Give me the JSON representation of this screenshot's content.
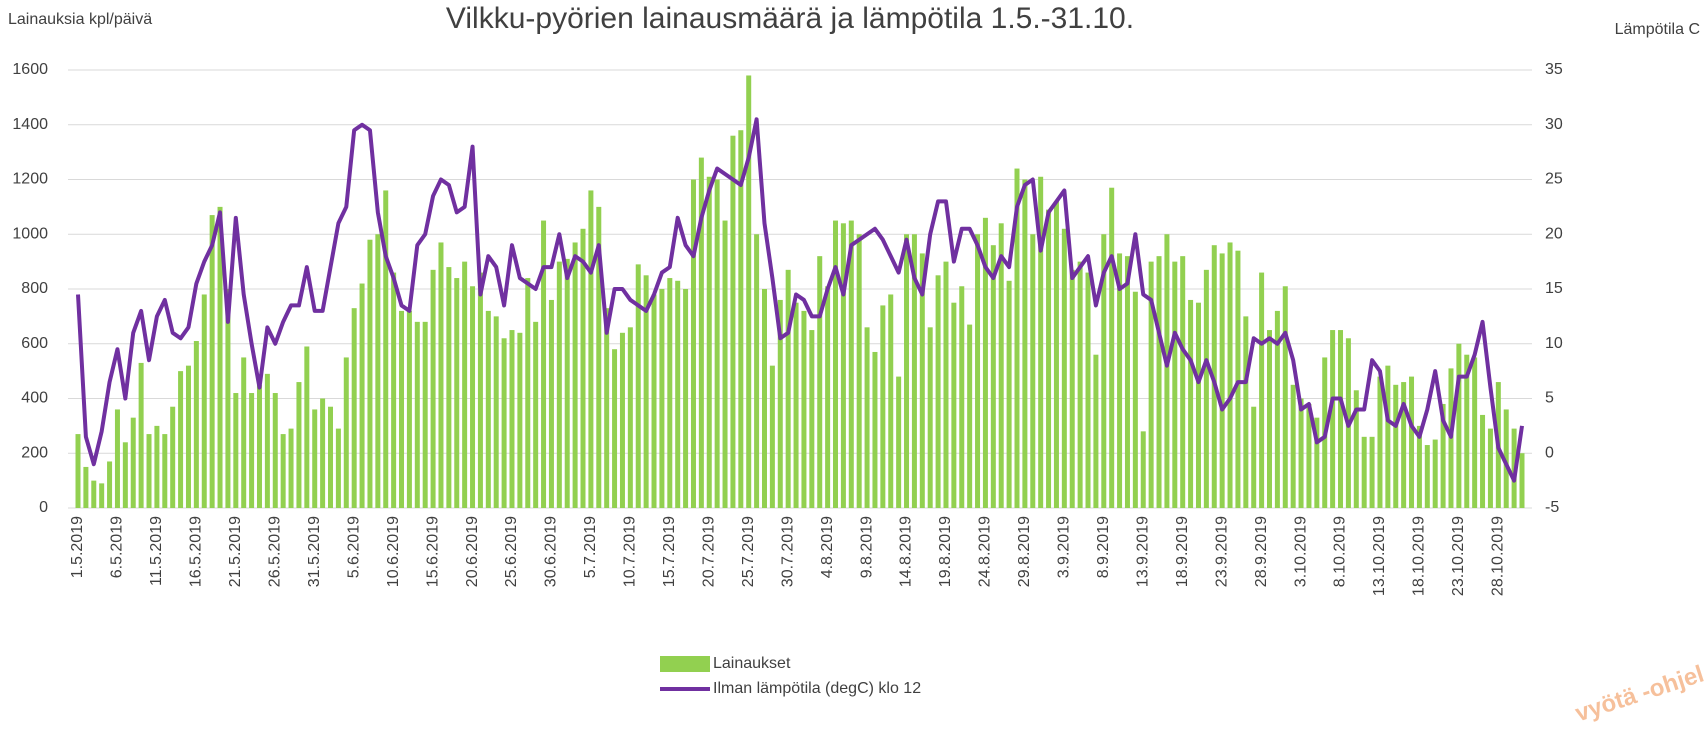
{
  "chart_data": {
    "type": "bar",
    "title": "Vilkku-pyörien lainausmäärä ja lämpötila 1.5.-31.10.",
    "y_label": "Lainauksia kpl/päivä",
    "y2_label": "Lämpötila C",
    "watermark": "vyötä -ohjel",
    "grid": true,
    "legend": "bottom",
    "ylim": [
      0,
      1600
    ],
    "yticks": [
      0,
      200,
      400,
      600,
      800,
      1000,
      1200,
      1400,
      1600
    ],
    "y2lim": [
      -5,
      35
    ],
    "y2ticks": [
      -5,
      0,
      5,
      10,
      15,
      20,
      25,
      30,
      35
    ],
    "categories": [
      "1.5.2019",
      null,
      null,
      null,
      null,
      "6.5.2019",
      null,
      null,
      null,
      null,
      "11.5.2019",
      null,
      null,
      null,
      null,
      "16.5.2019",
      null,
      null,
      null,
      null,
      "21.5.2019",
      null,
      null,
      null,
      null,
      "26.5.2019",
      null,
      null,
      null,
      null,
      "31.5.2019",
      null,
      null,
      null,
      null,
      "5.6.2019",
      null,
      null,
      null,
      null,
      "10.6.2019",
      null,
      null,
      null,
      null,
      "15.6.2019",
      null,
      null,
      null,
      null,
      "20.6.2019",
      null,
      null,
      null,
      null,
      "25.6.2019",
      null,
      null,
      null,
      null,
      "30.6.2019",
      null,
      null,
      null,
      null,
      "5.7.2019",
      null,
      null,
      null,
      null,
      "10.7.2019",
      null,
      null,
      null,
      null,
      "15.7.2019",
      null,
      null,
      null,
      null,
      "20.7.2019",
      null,
      null,
      null,
      null,
      "25.7.2019",
      null,
      null,
      null,
      null,
      "30.7.2019",
      null,
      null,
      null,
      null,
      "4.8.2019",
      null,
      null,
      null,
      null,
      "9.8.2019",
      null,
      null,
      null,
      null,
      "14.8.2019",
      null,
      null,
      null,
      null,
      "19.8.2019",
      null,
      null,
      null,
      null,
      "24.8.2019",
      null,
      null,
      null,
      null,
      "29.8.2019",
      null,
      null,
      null,
      null,
      "3.9.2019",
      null,
      null,
      null,
      null,
      "8.9.2019",
      null,
      null,
      null,
      null,
      "13.9.2019",
      null,
      null,
      null,
      null,
      "18.9.2019",
      null,
      null,
      null,
      null,
      "23.9.2019",
      null,
      null,
      null,
      null,
      "28.9.2019",
      null,
      null,
      null,
      null,
      "3.10.2019",
      null,
      null,
      null,
      null,
      "8.10.2019",
      null,
      null,
      null,
      null,
      "13.10.2019",
      null,
      null,
      null,
      null,
      "18.10.2019",
      null,
      null,
      null,
      null,
      "23.10.2019",
      null,
      null,
      null,
      null,
      "28.10.2019",
      null,
      null,
      null
    ],
    "series": [
      {
        "name": "Lainaukset",
        "type": "bar",
        "color": "#92d050",
        "values": [
          270,
          150,
          100,
          90,
          170,
          360,
          240,
          330,
          530,
          270,
          300,
          270,
          370,
          500,
          520,
          610,
          780,
          1070,
          1100,
          800,
          420,
          550,
          420,
          450,
          490,
          420,
          270,
          290,
          460,
          590,
          360,
          400,
          370,
          290,
          550,
          730,
          820,
          980,
          1000,
          1160,
          860,
          720,
          720,
          680,
          680,
          870,
          970,
          880,
          840,
          900,
          810,
          860,
          720,
          700,
          620,
          650,
          640,
          840,
          680,
          1050,
          760,
          900,
          910,
          970,
          1020,
          1160,
          1100,
          730,
          580,
          640,
          660,
          890,
          850,
          780,
          800,
          840,
          830,
          800,
          1200,
          1280,
          1210,
          1200,
          1050,
          1360,
          1380,
          1580,
          1000,
          800,
          520,
          760,
          870,
          750,
          720,
          650,
          920,
          810,
          1050,
          1040,
          1050,
          1000,
          660,
          570,
          740,
          780,
          480,
          1000,
          1000,
          930,
          660,
          850,
          900,
          750,
          810,
          670,
          1000,
          1060,
          960,
          1040,
          830,
          1240,
          1200,
          1000,
          1210,
          1090,
          1120,
          1020,
          870,
          900,
          860,
          560,
          1000,
          1170,
          930,
          920,
          790,
          280,
          900,
          920,
          1000,
          900,
          920,
          760,
          750,
          870,
          960,
          930,
          970,
          940,
          700,
          370,
          860,
          650,
          720,
          810,
          450,
          400,
          380,
          330,
          550,
          650,
          650,
          620,
          430,
          260,
          260,
          480,
          520,
          450,
          460,
          480,
          300,
          230,
          250,
          380,
          510,
          600,
          560,
          550,
          340,
          290,
          460,
          360,
          290,
          200
        ]
      },
      {
        "name": "Ilman lämpötila (degC) klo 12",
        "type": "line",
        "axis": "y2",
        "color": "#7030a0",
        "values": [
          14.5,
          1.5,
          -1,
          2,
          6.5,
          9.5,
          5,
          11,
          13,
          8.5,
          12.5,
          14,
          11,
          10.5,
          11.5,
          15.5,
          17.5,
          19,
          22,
          12,
          21.5,
          14.5,
          10,
          6,
          11.5,
          10,
          12,
          13.5,
          13.5,
          17,
          13,
          13,
          17,
          21,
          22.5,
          29.5,
          30,
          29.5,
          22,
          18,
          16,
          13.5,
          13,
          19,
          20,
          23.5,
          25,
          24.5,
          22,
          22.5,
          28,
          14.5,
          18,
          17,
          13.5,
          19,
          16,
          15.5,
          15,
          17,
          17,
          20,
          16,
          18,
          17.5,
          16.5,
          19,
          11,
          15,
          15,
          14,
          13.5,
          13,
          14.5,
          16.5,
          17,
          21.5,
          19,
          18,
          21.5,
          24,
          26,
          25.5,
          25,
          24.5,
          27,
          30.5,
          21,
          16,
          10.5,
          11,
          14.5,
          14,
          12.5,
          12.5,
          15,
          17,
          14.5,
          19,
          19.5,
          20,
          20.5,
          19.5,
          18,
          16.5,
          19.5,
          16,
          14.5,
          20,
          23,
          23,
          17.5,
          20.5,
          20.5,
          19,
          17,
          16,
          18,
          17,
          22.5,
          24.5,
          25,
          18.5,
          22,
          23,
          24,
          16,
          17,
          18,
          13.5,
          16.5,
          18,
          15,
          15.5,
          20,
          14.5,
          14,
          11,
          8,
          11,
          9.5,
          8.5,
          6.5,
          8.5,
          6.5,
          4,
          5,
          6.5,
          6.5,
          10.5,
          10,
          10.5,
          10,
          11,
          8.5,
          4,
          4.5,
          1,
          1.5,
          5,
          5,
          2.5,
          4,
          4,
          8.5,
          7.5,
          3,
          2.5,
          4.5,
          2.5,
          1.5,
          4,
          7.5,
          3,
          1.5,
          7,
          7,
          9,
          12,
          6,
          0.5,
          -1,
          -2.5,
          2.5
        ]
      }
    ]
  }
}
